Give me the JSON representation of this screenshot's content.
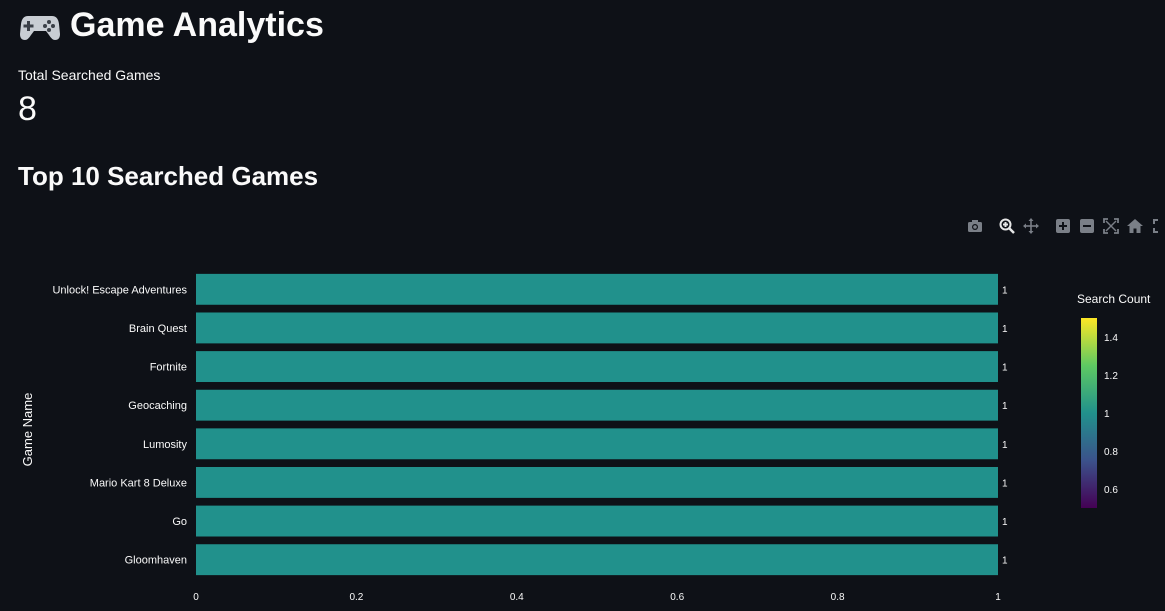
{
  "header": {
    "title": "Game Analytics"
  },
  "metric": {
    "label": "Total Searched Games",
    "value": "8"
  },
  "section": {
    "title": "Top 10 Searched Games"
  },
  "colors": {
    "background": "#0e1117",
    "bar": "#21918c",
    "text": "#fafafa"
  },
  "modebar": {
    "icons": [
      "camera-icon",
      "zoom-icon",
      "pan-icon",
      "zoom-in-icon",
      "zoom-out-icon",
      "autoscale-icon",
      "home-icon",
      "fullscreen-icon"
    ]
  },
  "chart_data": {
    "type": "bar",
    "orientation": "horizontal",
    "categories": [
      "Unlock! Escape Adventures",
      "Brain Quest",
      "Fortnite",
      "Geocaching",
      "Lumosity",
      "Mario Kart 8 Deluxe",
      "Go",
      "Gloomhaven"
    ],
    "values": [
      1,
      1,
      1,
      1,
      1,
      1,
      1,
      1
    ],
    "data_labels": [
      "1",
      "1",
      "1",
      "1",
      "1",
      "1",
      "1",
      "1"
    ],
    "ylabel": "Game Name",
    "xlim": [
      0,
      1
    ],
    "xticks": [
      "0",
      "0.2",
      "0.4",
      "0.6",
      "0.8",
      "1"
    ],
    "colorbar": {
      "title": "Search Count",
      "ticks": [
        "0.6",
        "0.8",
        "1",
        "1.2",
        "1.4"
      ],
      "colorscale": "viridis"
    },
    "grid": false
  }
}
